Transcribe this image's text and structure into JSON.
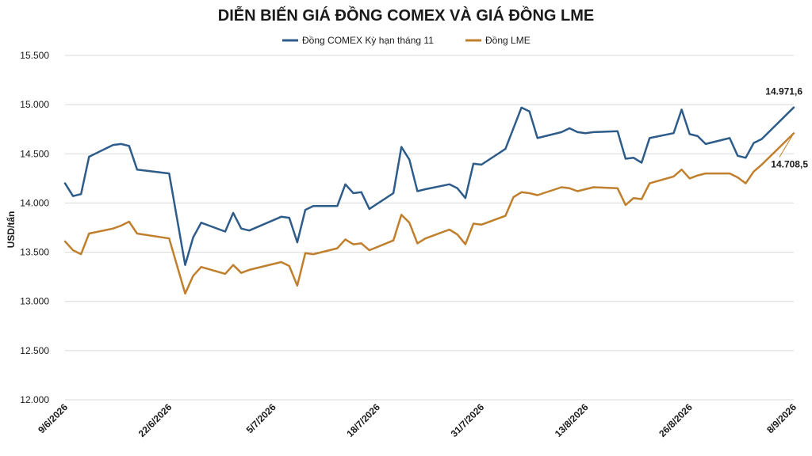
{
  "chart_data": {
    "type": "line",
    "title": "DIỄN BIẾN GIÁ ĐỒNG COMEX VÀ GIÁ ĐỒNG LME",
    "ylabel": "USD/tấn",
    "xlabel": "",
    "ylim": [
      12000,
      15500
    ],
    "yticks": [
      12000,
      12500,
      13000,
      13500,
      14000,
      14500,
      15000,
      15500
    ],
    "ytick_labels": [
      "12.000",
      "12.500",
      "13.000",
      "13.500",
      "14.000",
      "14.500",
      "15.000",
      "15.500"
    ],
    "x_range": [
      "2026-06-09",
      "2026-09-08"
    ],
    "xtick_labels": [
      "9/6/2026",
      "22/6/2026",
      "5/7/2026",
      "18/7/2026",
      "31/7/2026",
      "13/8/2026",
      "26/8/2026",
      "8/9/2026"
    ],
    "xtick_dates": [
      "2026-06-09",
      "2026-06-22",
      "2026-07-05",
      "2026-07-18",
      "2026-07-31",
      "2026-08-13",
      "2026-08-26",
      "2026-09-08"
    ],
    "legend_position": "top",
    "grid": true,
    "colors": {
      "comex": "#2e5c8a",
      "lme": "#c07f2c"
    },
    "series": [
      {
        "name": "Đồng COMEX Kỳ hạn tháng 11",
        "color": "#2e5c8a",
        "points": [
          [
            "2026-06-09",
            14200
          ],
          [
            "2026-06-10",
            14070
          ],
          [
            "2026-06-11",
            14090
          ],
          [
            "2026-06-12",
            14470
          ],
          [
            "2026-06-15",
            14590
          ],
          [
            "2026-06-16",
            14600
          ],
          [
            "2026-06-17",
            14580
          ],
          [
            "2026-06-18",
            14340
          ],
          [
            "2026-06-22",
            14300
          ],
          [
            "2026-06-24",
            13370
          ],
          [
            "2026-06-25",
            13650
          ],
          [
            "2026-06-26",
            13800
          ],
          [
            "2026-06-29",
            13710
          ],
          [
            "2026-06-30",
            13900
          ],
          [
            "2026-07-01",
            13740
          ],
          [
            "2026-07-02",
            13720
          ],
          [
            "2026-07-06",
            13860
          ],
          [
            "2026-07-07",
            13850
          ],
          [
            "2026-07-08",
            13600
          ],
          [
            "2026-07-09",
            13930
          ],
          [
            "2026-07-10",
            13970
          ],
          [
            "2026-07-13",
            13970
          ],
          [
            "2026-07-14",
            14190
          ],
          [
            "2026-07-15",
            14100
          ],
          [
            "2026-07-16",
            14110
          ],
          [
            "2026-07-17",
            13940
          ],
          [
            "2026-07-20",
            14100
          ],
          [
            "2026-07-21",
            14570
          ],
          [
            "2026-07-22",
            14440
          ],
          [
            "2026-07-23",
            14120
          ],
          [
            "2026-07-24",
            14140
          ],
          [
            "2026-07-27",
            14190
          ],
          [
            "2026-07-28",
            14150
          ],
          [
            "2026-07-29",
            14050
          ],
          [
            "2026-07-30",
            14400
          ],
          [
            "2026-07-31",
            14390
          ],
          [
            "2026-08-03",
            14550
          ],
          [
            "2026-08-05",
            14970
          ],
          [
            "2026-08-06",
            14930
          ],
          [
            "2026-08-07",
            14660
          ],
          [
            "2026-08-10",
            14720
          ],
          [
            "2026-08-11",
            14760
          ],
          [
            "2026-08-12",
            14720
          ],
          [
            "2026-08-13",
            14710
          ],
          [
            "2026-08-14",
            14720
          ],
          [
            "2026-08-17",
            14730
          ],
          [
            "2026-08-18",
            14450
          ],
          [
            "2026-08-19",
            14460
          ],
          [
            "2026-08-20",
            14410
          ],
          [
            "2026-08-21",
            14660
          ],
          [
            "2026-08-24",
            14710
          ],
          [
            "2026-08-25",
            14950
          ],
          [
            "2026-08-26",
            14700
          ],
          [
            "2026-08-27",
            14680
          ],
          [
            "2026-08-28",
            14600
          ],
          [
            "2026-08-31",
            14660
          ],
          [
            "2026-09-01",
            14480
          ],
          [
            "2026-09-02",
            14460
          ],
          [
            "2026-09-03",
            14610
          ],
          [
            "2026-09-04",
            14650
          ],
          [
            "2026-09-08",
            14971.6
          ]
        ]
      },
      {
        "name": "Đồng LME",
        "color": "#c07f2c",
        "points": [
          [
            "2026-06-09",
            13610
          ],
          [
            "2026-06-10",
            13520
          ],
          [
            "2026-06-11",
            13480
          ],
          [
            "2026-06-12",
            13690
          ],
          [
            "2026-06-15",
            13740
          ],
          [
            "2026-06-16",
            13770
          ],
          [
            "2026-06-17",
            13810
          ],
          [
            "2026-06-18",
            13690
          ],
          [
            "2026-06-22",
            13640
          ],
          [
            "2026-06-24",
            13080
          ],
          [
            "2026-06-25",
            13260
          ],
          [
            "2026-06-26",
            13350
          ],
          [
            "2026-06-29",
            13280
          ],
          [
            "2026-06-30",
            13370
          ],
          [
            "2026-07-01",
            13290
          ],
          [
            "2026-07-02",
            13320
          ],
          [
            "2026-07-06",
            13400
          ],
          [
            "2026-07-07",
            13360
          ],
          [
            "2026-07-08",
            13160
          ],
          [
            "2026-07-09",
            13490
          ],
          [
            "2026-07-10",
            13480
          ],
          [
            "2026-07-13",
            13540
          ],
          [
            "2026-07-14",
            13630
          ],
          [
            "2026-07-15",
            13580
          ],
          [
            "2026-07-16",
            13590
          ],
          [
            "2026-07-17",
            13520
          ],
          [
            "2026-07-20",
            13620
          ],
          [
            "2026-07-21",
            13880
          ],
          [
            "2026-07-22",
            13800
          ],
          [
            "2026-07-23",
            13590
          ],
          [
            "2026-07-24",
            13640
          ],
          [
            "2026-07-27",
            13730
          ],
          [
            "2026-07-28",
            13680
          ],
          [
            "2026-07-29",
            13580
          ],
          [
            "2026-07-30",
            13790
          ],
          [
            "2026-07-31",
            13780
          ],
          [
            "2026-08-03",
            13870
          ],
          [
            "2026-08-04",
            14060
          ],
          [
            "2026-08-05",
            14110
          ],
          [
            "2026-08-06",
            14100
          ],
          [
            "2026-08-07",
            14080
          ],
          [
            "2026-08-10",
            14160
          ],
          [
            "2026-08-11",
            14150
          ],
          [
            "2026-08-12",
            14120
          ],
          [
            "2026-08-13",
            14140
          ],
          [
            "2026-08-14",
            14160
          ],
          [
            "2026-08-17",
            14150
          ],
          [
            "2026-08-18",
            13980
          ],
          [
            "2026-08-19",
            14050
          ],
          [
            "2026-08-20",
            14040
          ],
          [
            "2026-08-21",
            14200
          ],
          [
            "2026-08-24",
            14270
          ],
          [
            "2026-08-25",
            14340
          ],
          [
            "2026-08-26",
            14250
          ],
          [
            "2026-08-27",
            14280
          ],
          [
            "2026-08-28",
            14300
          ],
          [
            "2026-08-31",
            14300
          ],
          [
            "2026-09-01",
            14260
          ],
          [
            "2026-09-02",
            14200
          ],
          [
            "2026-09-03",
            14320
          ],
          [
            "2026-09-04",
            14390
          ],
          [
            "2026-09-08",
            14708.5
          ]
        ]
      }
    ],
    "annotations": [
      {
        "text": "14.971,6",
        "series": 0,
        "date": "2026-09-08",
        "value": 14971.6,
        "placement": "above"
      },
      {
        "text": "14.708,5",
        "series": 1,
        "date": "2026-09-08",
        "value": 14708.5,
        "placement": "below"
      }
    ]
  }
}
